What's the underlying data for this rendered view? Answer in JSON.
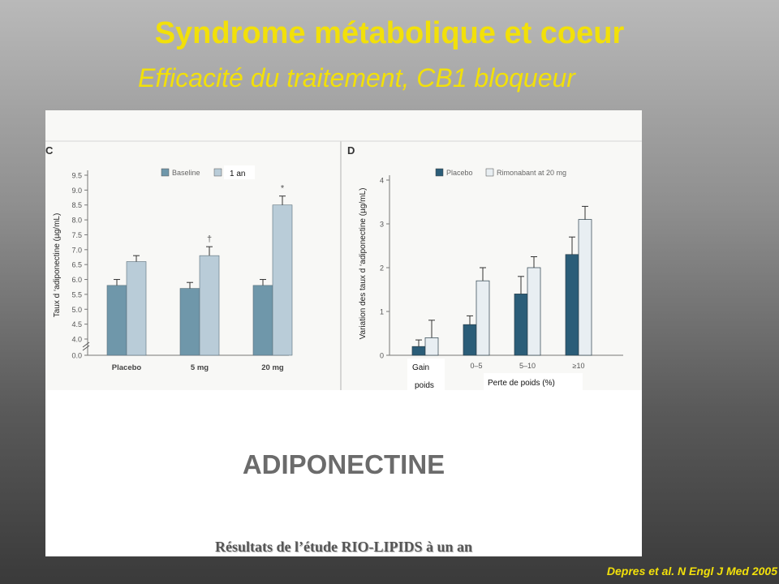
{
  "slide": {
    "title": "Syndrome métabolique et coeur",
    "subtitle": "Efficacité du traitement, CB1 bloqueur",
    "heading": "ADIPONECTINE",
    "source_line": "Résultats de l’étude RIO-LIPIDS à un an",
    "citation": "Depres et al. N Engl J Med 2005"
  },
  "colors": {
    "title": "#f2e00a",
    "dark_bar": "#6f97aa",
    "light_bar": "#b9ccd8",
    "dark_bar_d": "#2b5d78",
    "light_bar_d": "#e8eef2"
  },
  "chart_data": [
    {
      "panel_label": "C",
      "type": "bar",
      "categories": [
        "Placebo",
        "5 mg",
        "20 mg"
      ],
      "series": [
        {
          "name": "Baseline",
          "values": [
            5.8,
            5.7,
            5.8
          ],
          "errors": [
            0.2,
            0.2,
            0.2
          ]
        },
        {
          "name": "1 an",
          "values": [
            6.6,
            6.8,
            8.5
          ],
          "errors": [
            0.2,
            0.3,
            0.3
          ]
        }
      ],
      "annotations": [
        {
          "category": "5 mg",
          "text": "†"
        },
        {
          "category": "20 mg",
          "text": "*"
        }
      ],
      "ylabel": "Taux d ‘adiponectine (µg/mL)",
      "yticks": [
        "0.0",
        "4.0",
        "4.5",
        "5.0",
        "5.5",
        "6.0",
        "6.5",
        "7.0",
        "7.5",
        "8.0",
        "8.5",
        "9.0",
        "9.5"
      ],
      "ylim": [
        4.0,
        9.5
      ],
      "axis_break": true
    },
    {
      "panel_label": "D",
      "type": "bar",
      "categories": [
        "Gain poids",
        "0–5",
        "5–10",
        "≥10"
      ],
      "series": [
        {
          "name": "Placebo",
          "values": [
            0.2,
            0.7,
            1.4,
            2.3
          ],
          "errors": [
            0.15,
            0.2,
            0.4,
            0.4
          ]
        },
        {
          "name": "Rimonabant at 20 mg",
          "values": [
            0.4,
            1.7,
            2.0,
            3.1
          ],
          "errors": [
            0.4,
            0.3,
            0.25,
            0.3
          ]
        }
      ],
      "ylabel": "Variation des taux d ‘adiponectine (µg/mL)",
      "xlabel": "Perte de poids (%)",
      "gain_label_1": "Gain",
      "gain_label_2": "poids",
      "yticks": [
        "0",
        "1",
        "2",
        "3",
        "4"
      ],
      "ylim": [
        0,
        4
      ]
    }
  ]
}
